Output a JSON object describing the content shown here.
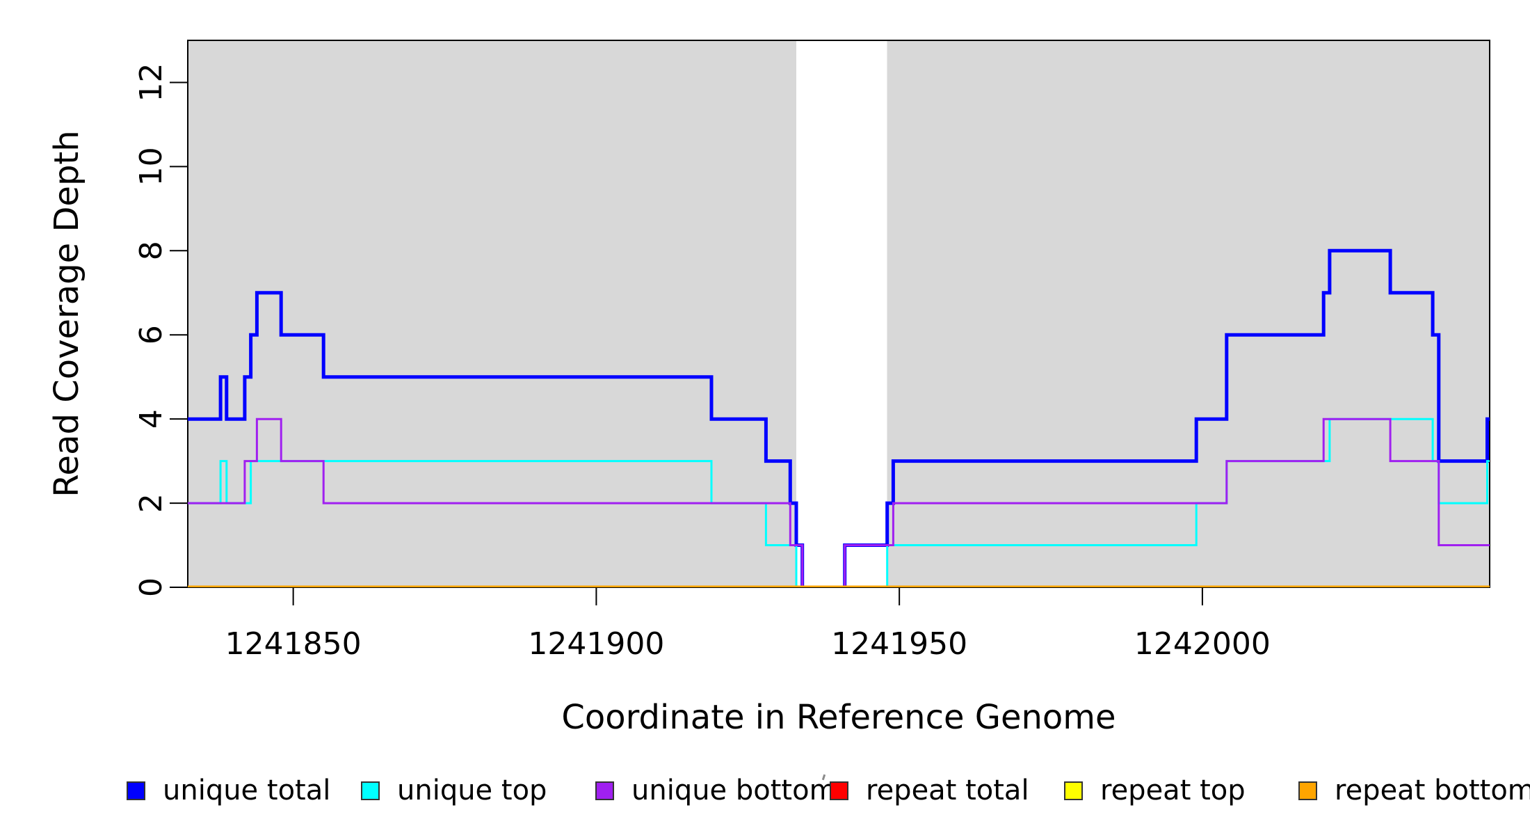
{
  "chart_data": {
    "type": "line",
    "subtype": "step",
    "title": "",
    "xlabel": "Coordinate in Reference Genome",
    "ylabel": "Read Coverage Depth",
    "xlim": [
      1241832.6,
      1242047.4
    ],
    "ylim": [
      0,
      13
    ],
    "x_ticks": [
      {
        "value": 1241850,
        "label": "1241850"
      },
      {
        "value": 1241900,
        "label": "1241900"
      },
      {
        "value": 1241950,
        "label": "1241950"
      },
      {
        "value": 1242000,
        "label": "1242000"
      }
    ],
    "y_ticks": [
      {
        "value": 0,
        "label": "0"
      },
      {
        "value": 2,
        "label": "2"
      },
      {
        "value": 4,
        "label": "4"
      },
      {
        "value": 6,
        "label": "6"
      },
      {
        "value": 8,
        "label": "8"
      },
      {
        "value": 10,
        "label": "10"
      },
      {
        "value": 12,
        "label": "12"
      }
    ],
    "grid": false,
    "legend_position": "bottom",
    "colors": {
      "plot_border": "#000000",
      "shading": "#d8d8d8",
      "background": "#ffffff"
    },
    "shaded_regions": [
      [
        1241832.6,
        1241933
      ],
      [
        1241948,
        1242047.4
      ]
    ],
    "series": [
      {
        "name": "unique total",
        "color": "#0000ff",
        "width": 5,
        "points": [
          [
            1241833,
            4
          ],
          [
            1241838,
            5
          ],
          [
            1241839,
            4
          ],
          [
            1241842,
            5
          ],
          [
            1241843,
            6
          ],
          [
            1241844,
            7
          ],
          [
            1241848,
            6
          ],
          [
            1241855,
            5
          ],
          [
            1241919,
            4
          ],
          [
            1241928,
            3
          ],
          [
            1241932,
            2
          ],
          [
            1241933,
            1
          ],
          [
            1241934,
            0
          ],
          [
            1241941,
            1
          ],
          [
            1241948,
            2
          ],
          [
            1241949,
            3
          ],
          [
            1241999,
            4
          ],
          [
            1242004,
            6
          ],
          [
            1242020,
            7
          ],
          [
            1242021,
            8
          ],
          [
            1242031,
            7
          ],
          [
            1242038,
            6
          ],
          [
            1242039,
            3
          ],
          [
            1242047,
            4
          ]
        ]
      },
      {
        "name": "unique top",
        "color": "#00ffff",
        "width": 3,
        "points": [
          [
            1241833,
            2
          ],
          [
            1241838,
            3
          ],
          [
            1241839,
            2
          ],
          [
            1241843,
            3
          ],
          [
            1241919,
            2
          ],
          [
            1241928,
            1
          ],
          [
            1241933,
            0
          ],
          [
            1241948,
            1
          ],
          [
            1241999,
            2
          ],
          [
            1242004,
            3
          ],
          [
            1242021,
            4
          ],
          [
            1242038,
            3
          ],
          [
            1242039,
            2
          ],
          [
            1242047,
            3
          ]
        ]
      },
      {
        "name": "unique bottom",
        "color": "#a020f0",
        "width": 3,
        "points": [
          [
            1241833,
            2
          ],
          [
            1241842,
            3
          ],
          [
            1241844,
            4
          ],
          [
            1241848,
            3
          ],
          [
            1241855,
            2
          ],
          [
            1241932,
            1
          ],
          [
            1241934,
            0
          ],
          [
            1241941,
            1
          ],
          [
            1241949,
            2
          ],
          [
            1242004,
            3
          ],
          [
            1242020,
            4
          ],
          [
            1242031,
            3
          ],
          [
            1242039,
            1
          ]
        ]
      },
      {
        "name": "repeat total",
        "color": "#ff0000",
        "width": 3,
        "points": [
          [
            1241833,
            0
          ]
        ]
      },
      {
        "name": "repeat top",
        "color": "#ffff00",
        "width": 3,
        "points": [
          [
            1241833,
            0
          ]
        ]
      },
      {
        "name": "repeat bottom",
        "color": "#ffa500",
        "width": 5,
        "points": [
          [
            1241833,
            0
          ]
        ]
      }
    ]
  }
}
